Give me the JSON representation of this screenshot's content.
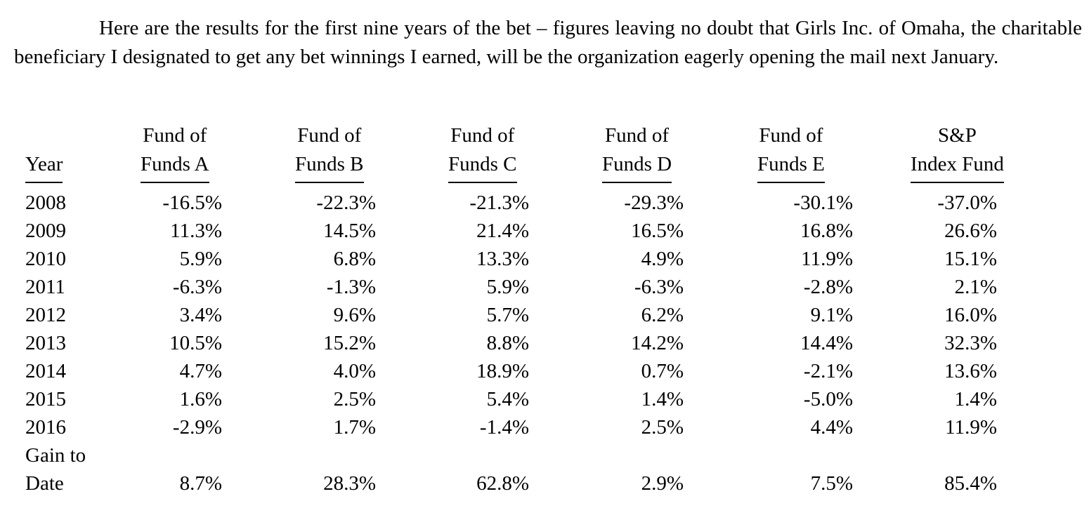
{
  "intro": {
    "text": "Here are the results for the first nine years of the bet – figures leaving no doubt that Girls Inc. of Omaha, the charitable beneficiary I designated to get any bet winnings I earned, will be the organization eagerly opening the mail next January."
  },
  "table": {
    "headers": [
      {
        "line1": "",
        "line2": "Year"
      },
      {
        "line1": "Fund of",
        "line2": "Funds A"
      },
      {
        "line1": "Fund of",
        "line2": "Funds B"
      },
      {
        "line1": "Fund of",
        "line2": "Funds C"
      },
      {
        "line1": "Fund of",
        "line2": "Funds D"
      },
      {
        "line1": "Fund of",
        "line2": "Funds E"
      },
      {
        "line1": "S&P",
        "line2": "Index Fund"
      }
    ],
    "rows": [
      {
        "year": "2008",
        "values": [
          "-16.5%",
          "-22.3%",
          "-21.3%",
          "-29.3%",
          "-30.1%",
          "-37.0%"
        ]
      },
      {
        "year": "2009",
        "values": [
          "11.3%",
          "14.5%",
          "21.4%",
          "16.5%",
          "16.8%",
          "26.6%"
        ]
      },
      {
        "year": "2010",
        "values": [
          "5.9%",
          "6.8%",
          "13.3%",
          "4.9%",
          "11.9%",
          "15.1%"
        ]
      },
      {
        "year": "2011",
        "values": [
          "-6.3%",
          "-1.3%",
          "5.9%",
          "-6.3%",
          "-2.8%",
          "2.1%"
        ]
      },
      {
        "year": "2012",
        "values": [
          "3.4%",
          "9.6%",
          "5.7%",
          "6.2%",
          "9.1%",
          "16.0%"
        ]
      },
      {
        "year": "2013",
        "values": [
          "10.5%",
          "15.2%",
          "8.8%",
          "14.2%",
          "14.4%",
          "32.3%"
        ]
      },
      {
        "year": "2014",
        "values": [
          "4.7%",
          "4.0%",
          "18.9%",
          "0.7%",
          "-2.1%",
          "13.6%"
        ]
      },
      {
        "year": "2015",
        "values": [
          "1.6%",
          "2.5%",
          "5.4%",
          "1.4%",
          "-5.0%",
          "1.4%"
        ]
      },
      {
        "year": "2016",
        "values": [
          "-2.9%",
          "1.7%",
          "-1.4%",
          "2.5%",
          "4.4%",
          "11.9%"
        ]
      }
    ],
    "total": {
      "label_line1": "Gain to",
      "label_line2": "Date",
      "values": [
        "8.7%",
        "28.3%",
        "62.8%",
        "2.9%",
        "7.5%",
        "85.4%"
      ]
    }
  }
}
